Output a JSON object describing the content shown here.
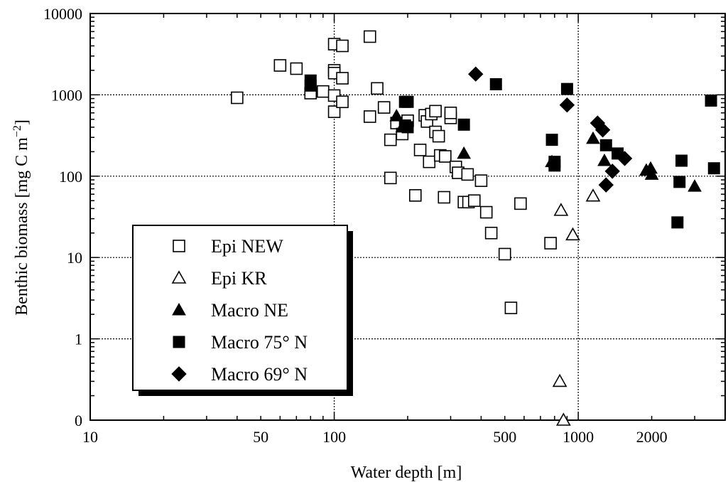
{
  "chart_data": {
    "type": "scatter",
    "title": "",
    "xlabel": "Water depth [m]",
    "ylabel_main": "Benthic biomass [mg C m",
    "ylabel_sup": "−2",
    "ylabel_end": "]",
    "x_scale": "log",
    "y_scale": "log (with 0 at bottom)",
    "xlim": [
      10,
      4000
    ],
    "ylim": [
      0.1,
      10000
    ],
    "x_ticks": [
      {
        "value": 10,
        "label": "10"
      },
      {
        "value": 50,
        "label": "50"
      },
      {
        "value": 100,
        "label": "100"
      },
      {
        "value": 500,
        "label": "500"
      },
      {
        "value": 1000,
        "label": "1000"
      },
      {
        "value": 2000,
        "label": "2000"
      }
    ],
    "y_ticks": [
      {
        "value": 0.1,
        "label": "0"
      },
      {
        "value": 1,
        "label": "1"
      },
      {
        "value": 10,
        "label": "10"
      },
      {
        "value": 100,
        "label": "100"
      },
      {
        "value": 1000,
        "label": "1000"
      },
      {
        "value": 10000,
        "label": "10000"
      }
    ],
    "grid_major_x": [
      100,
      1000
    ],
    "grid_major_y": [
      1,
      10,
      100,
      1000
    ],
    "legend_position": "lower-left",
    "series": [
      {
        "name": "Epi NEW",
        "marker": "open-square",
        "points": [
          [
            40,
            920
          ],
          [
            60,
            2300
          ],
          [
            70,
            2100
          ],
          [
            80,
            1050
          ],
          [
            90,
            1100
          ],
          [
            100,
            4200
          ],
          [
            100,
            2000
          ],
          [
            100,
            1850
          ],
          [
            100,
            980
          ],
          [
            100,
            620
          ],
          [
            108,
            4000
          ],
          [
            108,
            1600
          ],
          [
            108,
            820
          ],
          [
            140,
            5200
          ],
          [
            140,
            540
          ],
          [
            150,
            1200
          ],
          [
            160,
            700
          ],
          [
            170,
            280
          ],
          [
            170,
            95
          ],
          [
            180,
            450
          ],
          [
            190,
            330
          ],
          [
            200,
            480
          ],
          [
            215,
            58
          ],
          [
            225,
            210
          ],
          [
            235,
            560
          ],
          [
            240,
            470
          ],
          [
            250,
            580
          ],
          [
            245,
            150
          ],
          [
            260,
            630
          ],
          [
            260,
            350
          ],
          [
            268,
            310
          ],
          [
            272,
            180
          ],
          [
            282,
            55
          ],
          [
            285,
            175
          ],
          [
            300,
            520
          ],
          [
            300,
            600
          ],
          [
            315,
            130
          ],
          [
            322,
            110
          ],
          [
            340,
            48
          ],
          [
            352,
            105
          ],
          [
            355,
            48
          ],
          [
            375,
            50
          ],
          [
            400,
            88
          ],
          [
            420,
            36
          ],
          [
            440,
            20
          ],
          [
            500,
            11
          ],
          [
            530,
            2.4
          ],
          [
            580,
            46
          ],
          [
            770,
            15
          ]
        ]
      },
      {
        "name": "Epi KR",
        "marker": "open-triangle",
        "points": [
          [
            850,
            38
          ],
          [
            950,
            19
          ],
          [
            1150,
            57
          ],
          [
            840,
            0.3
          ],
          [
            870,
            0.1
          ]
        ]
      },
      {
        "name": "Macro NE",
        "marker": "filled-triangle",
        "points": [
          [
            180,
            550
          ],
          [
            190,
            400
          ],
          [
            340,
            190
          ],
          [
            780,
            150
          ],
          [
            1150,
            290
          ],
          [
            1280,
            155
          ],
          [
            1900,
            118
          ],
          [
            1980,
            125
          ],
          [
            2000,
            105
          ],
          [
            3000,
            75
          ]
        ]
      },
      {
        "name": "Macro 75° N",
        "marker": "filled-square",
        "points": [
          [
            80,
            1500
          ],
          [
            80,
            1300
          ],
          [
            195,
            820
          ],
          [
            200,
            820
          ],
          [
            195,
            420
          ],
          [
            200,
            400
          ],
          [
            340,
            430
          ],
          [
            460,
            1350
          ],
          [
            900,
            1180
          ],
          [
            780,
            280
          ],
          [
            800,
            150
          ],
          [
            800,
            135
          ],
          [
            1300,
            240
          ],
          [
            1450,
            190
          ],
          [
            2550,
            27
          ],
          [
            2600,
            85
          ],
          [
            2650,
            155
          ],
          [
            3500,
            850
          ],
          [
            3600,
            125
          ]
        ]
      },
      {
        "name": "Macro 69° N",
        "marker": "filled-diamond",
        "points": [
          [
            380,
            1800
          ],
          [
            900,
            750
          ],
          [
            1200,
            450
          ],
          [
            1260,
            370
          ],
          [
            1380,
            115
          ],
          [
            1550,
            165
          ],
          [
            1300,
            78
          ]
        ]
      }
    ]
  }
}
